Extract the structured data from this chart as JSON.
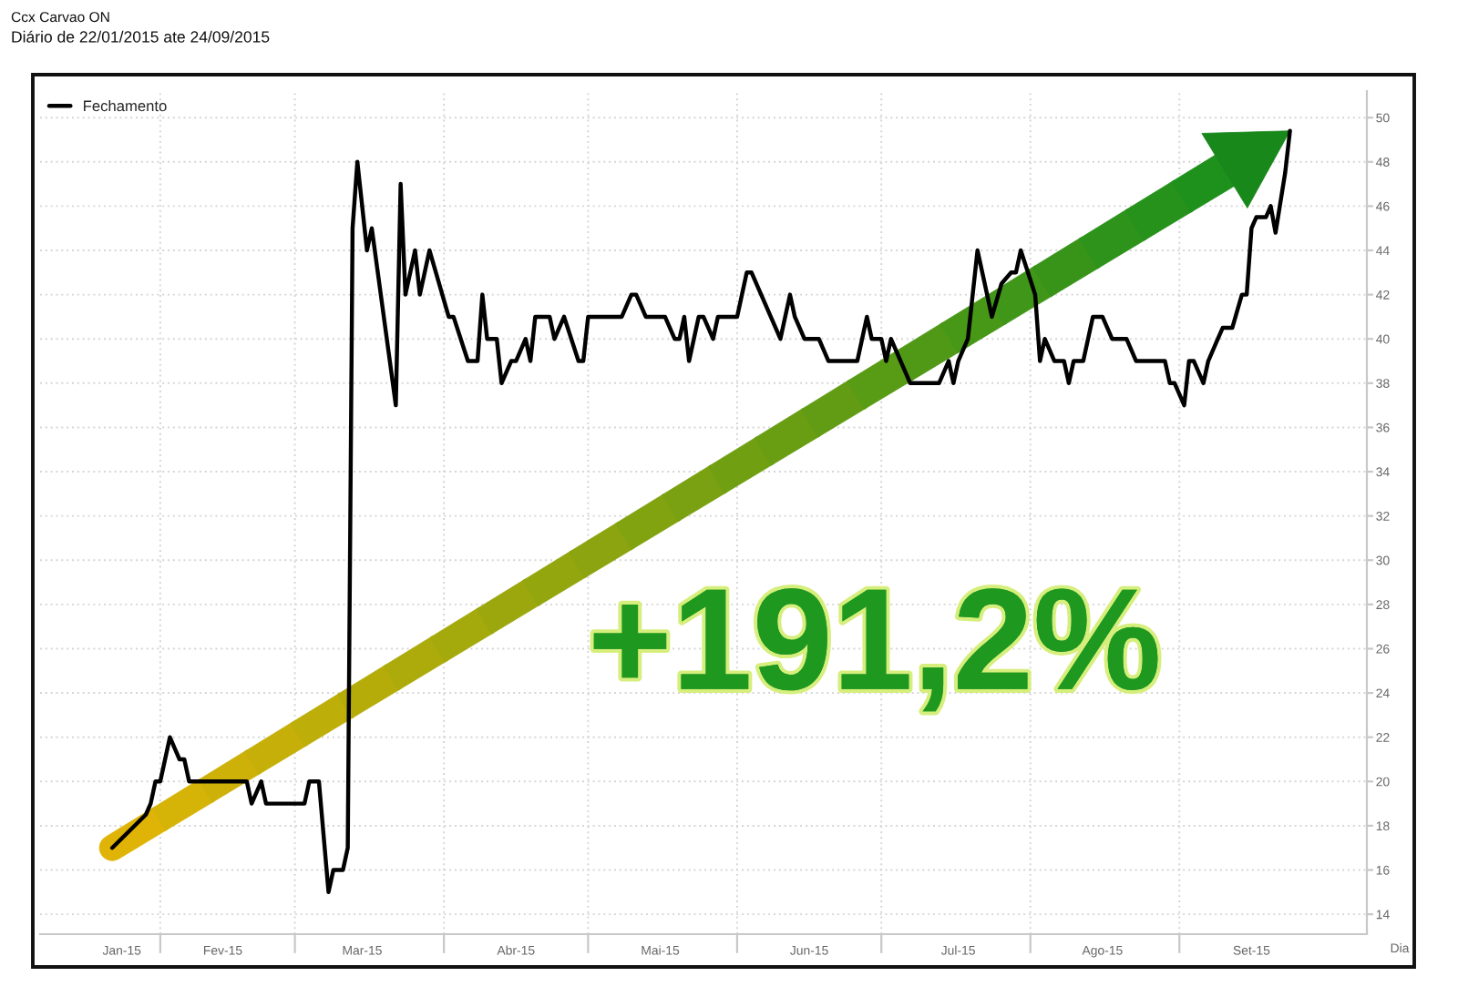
{
  "chart_data": {
    "type": "line",
    "title": "Ccx Carvao ON",
    "subtitle": "Diário de 22/01/2015 ate 24/09/2015",
    "xlabel": "Dia",
    "annotations": [
      "+191,2%"
    ],
    "x": [
      "2015-01-22",
      "2015-01-29",
      "2015-01-30",
      "2015-01-31",
      "2015-02-01",
      "2015-02-03",
      "2015-02-04",
      "2015-02-05",
      "2015-02-06",
      "2015-02-07",
      "2015-02-09",
      "2015-02-19",
      "2015-02-20",
      "2015-02-22",
      "2015-02-23",
      "2015-03-03",
      "2015-03-04",
      "2015-03-06",
      "2015-03-08",
      "2015-03-09",
      "2015-03-11",
      "2015-03-12",
      "2015-03-13",
      "2015-03-14",
      "2015-03-16",
      "2015-03-17",
      "2015-03-22",
      "2015-03-23",
      "2015-03-24",
      "2015-03-26",
      "2015-03-27",
      "2015-03-29",
      "2015-04-02",
      "2015-04-03",
      "2015-04-06",
      "2015-04-08",
      "2015-04-09",
      "2015-04-10",
      "2015-04-12",
      "2015-04-13",
      "2015-04-15",
      "2015-04-16",
      "2015-04-18",
      "2015-04-19",
      "2015-04-20",
      "2015-04-23",
      "2015-04-24",
      "2015-04-26",
      "2015-04-29",
      "2015-04-30",
      "2015-05-01",
      "2015-05-08",
      "2015-05-10",
      "2015-05-11",
      "2015-05-13",
      "2015-05-17",
      "2015-05-19",
      "2015-05-20",
      "2015-05-21",
      "2015-05-22",
      "2015-05-24",
      "2015-05-25",
      "2015-05-27",
      "2015-05-28",
      "2015-06-01",
      "2015-06-03",
      "2015-06-04",
      "2015-06-06",
      "2015-06-10",
      "2015-06-12",
      "2015-06-13",
      "2015-06-15",
      "2015-06-18",
      "2015-06-20",
      "2015-06-26",
      "2015-06-28",
      "2015-06-29",
      "2015-07-01",
      "2015-07-02",
      "2015-07-03",
      "2015-07-07",
      "2015-07-09",
      "2015-07-13",
      "2015-07-15",
      "2015-07-16",
      "2015-07-17",
      "2015-07-19",
      "2015-07-21",
      "2015-07-22",
      "2015-07-24",
      "2015-07-26",
      "2015-07-28",
      "2015-07-29",
      "2015-07-30",
      "2015-08-02",
      "2015-08-03",
      "2015-08-04",
      "2015-08-06",
      "2015-08-08",
      "2015-08-09",
      "2015-08-10",
      "2015-08-12",
      "2015-08-14",
      "2015-08-16",
      "2015-08-18",
      "2015-08-21",
      "2015-08-23",
      "2015-08-29",
      "2015-08-30",
      "2015-08-31",
      "2015-09-02",
      "2015-09-03",
      "2015-09-04",
      "2015-09-06",
      "2015-09-07",
      "2015-09-09",
      "2015-09-10",
      "2015-09-12",
      "2015-09-14",
      "2015-09-15",
      "2015-09-16",
      "2015-09-17",
      "2015-09-19",
      "2015-09-20",
      "2015-09-21",
      "2015-09-23",
      "2015-09-24"
    ],
    "series": [
      {
        "name": "Fechamento",
        "color": "#000000",
        "values": [
          17.0,
          18.5,
          19,
          20,
          20,
          22,
          21.5,
          21,
          21,
          20,
          20,
          20,
          19,
          20,
          19,
          19,
          20,
          20,
          15,
          16,
          16,
          17,
          45,
          48,
          44,
          45,
          37,
          47,
          42,
          44,
          42,
          44,
          41,
          41,
          39,
          39,
          42,
          40,
          40,
          38,
          39,
          39,
          40,
          39,
          41,
          41,
          40,
          41,
          39,
          39,
          41,
          41,
          42,
          42,
          41,
          41,
          40,
          40,
          41,
          39,
          41,
          41,
          40,
          41,
          41,
          43,
          43,
          42,
          40,
          42,
          41,
          40,
          40,
          39,
          39,
          41,
          40,
          40,
          39,
          40,
          38,
          38,
          38,
          39,
          38,
          39,
          40,
          44,
          43,
          41,
          42.5,
          43,
          43,
          44,
          42,
          39,
          40,
          39,
          39,
          38,
          39,
          39,
          41,
          41,
          40,
          40,
          39,
          39,
          38,
          38,
          37,
          39,
          39,
          38,
          39,
          40,
          40.5,
          40.5,
          42,
          42,
          45,
          45.5,
          45.5,
          46,
          44.8,
          47.5,
          49.4
        ]
      }
    ],
    "xlim": [
      "2015-01-07",
      "2015-10-10"
    ],
    "xticks": [
      {
        "value": "2015-01-24",
        "label": "Jan-15"
      },
      {
        "value": "2015-02-01",
        "label": null
      },
      {
        "value": "2015-02-14",
        "label": "Fev-15"
      },
      {
        "value": "2015-03-01",
        "label": null
      },
      {
        "value": "2015-03-15",
        "label": "Mar-15"
      },
      {
        "value": "2015-04-01",
        "label": null
      },
      {
        "value": "2015-04-16",
        "label": "Abr-15"
      },
      {
        "value": "2015-05-01",
        "label": null
      },
      {
        "value": "2015-05-16",
        "label": "Mai-15"
      },
      {
        "value": "2015-06-01",
        "label": null
      },
      {
        "value": "2015-06-16",
        "label": "Jun-15"
      },
      {
        "value": "2015-07-01",
        "label": null
      },
      {
        "value": "2015-07-17",
        "label": "Jul-15"
      },
      {
        "value": "2015-08-01",
        "label": null
      },
      {
        "value": "2015-08-16",
        "label": "Ago-15"
      },
      {
        "value": "2015-09-01",
        "label": null
      },
      {
        "value": "2015-09-16",
        "label": "Set-15"
      }
    ],
    "ylim": [
      13.1,
      51.2
    ],
    "yticks": [
      14,
      16,
      18,
      20,
      22,
      24,
      26,
      28,
      30,
      32,
      34,
      36,
      38,
      40,
      42,
      44,
      46,
      48,
      50
    ],
    "grid": true,
    "legend": "top left",
    "line_style": "solid"
  }
}
